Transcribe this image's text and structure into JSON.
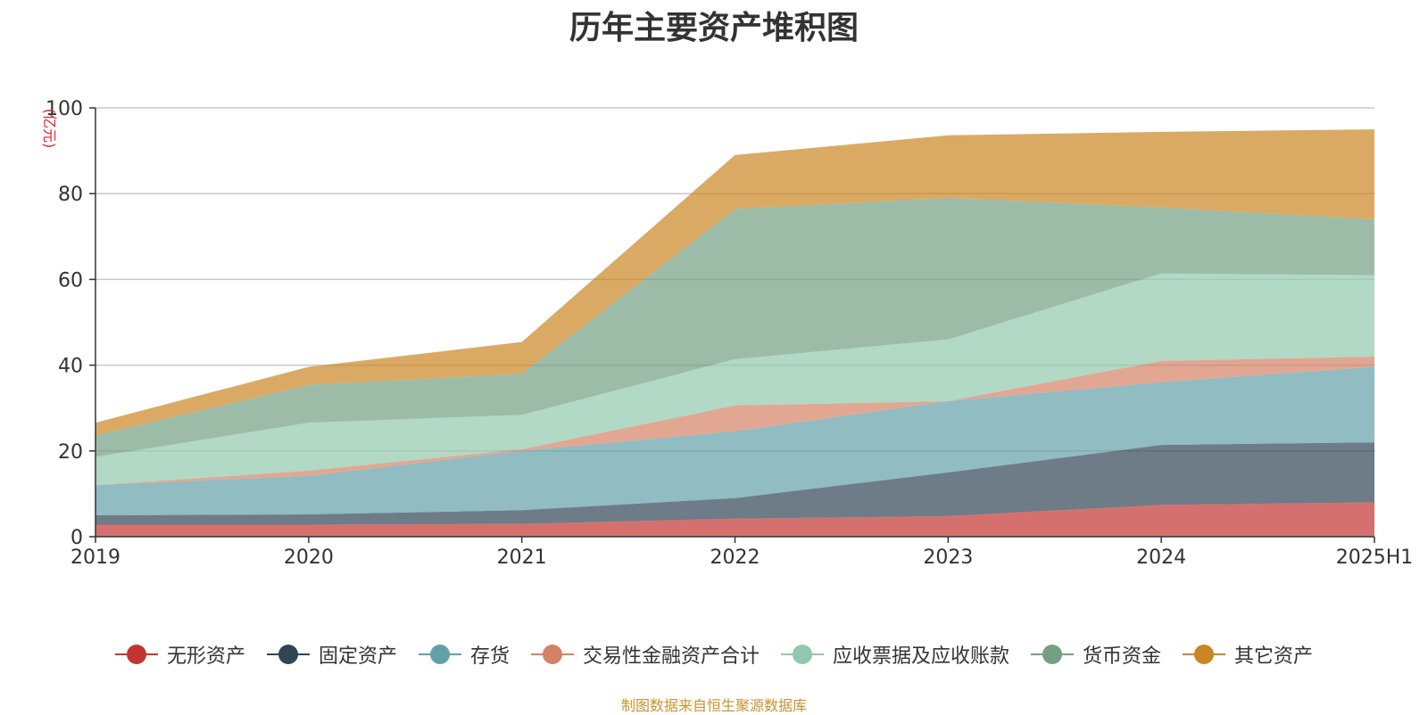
{
  "chart_data": {
    "type": "area",
    "stacked": true,
    "title": "历年主要资产堆积图",
    "ylabel": "(亿元)",
    "xlabel": "",
    "categories": [
      "2019",
      "2020",
      "2021",
      "2022",
      "2023",
      "2024",
      "2025H1"
    ],
    "ylim": [
      0,
      100
    ],
    "yticks": [
      "0",
      "20",
      "40",
      "60",
      "80",
      "100"
    ],
    "grid": true,
    "legend_position": "bottom",
    "series": [
      {
        "name": "无形资产",
        "color": "#c23531",
        "values": [
          2.8,
          2.8,
          3.0,
          4.2,
          4.8,
          7.4,
          8.0
        ]
      },
      {
        "name": "固定资产",
        "color": "#2f4554",
        "values": [
          2.2,
          2.4,
          3.2,
          4.8,
          10.2,
          14.0,
          14.0
        ]
      },
      {
        "name": "存货",
        "color": "#61a0a8",
        "values": [
          7.0,
          9.0,
          13.8,
          15.6,
          16.6,
          14.6,
          17.6
        ]
      },
      {
        "name": "交易性金融资产合计",
        "color": "#d48265",
        "values": [
          0.0,
          1.2,
          0.4,
          6.0,
          0.0,
          5.0,
          2.4
        ]
      },
      {
        "name": "应收票据及应收账款",
        "color": "#91c7ae",
        "values": [
          6.6,
          11.2,
          8.0,
          10.8,
          14.4,
          20.4,
          19.0
        ]
      },
      {
        "name": "货币资金",
        "color": "#749f83",
        "values": [
          5.0,
          8.8,
          9.6,
          35.0,
          33.0,
          15.4,
          13.0
        ]
      },
      {
        "name": "其它资产",
        "color": "#ca8622",
        "values": [
          3.0,
          4.2,
          7.4,
          12.6,
          14.6,
          17.6,
          21.0
        ]
      }
    ]
  },
  "source": {
    "text": "制图数据来自恒生聚源数据库",
    "color": "#c9932f"
  }
}
